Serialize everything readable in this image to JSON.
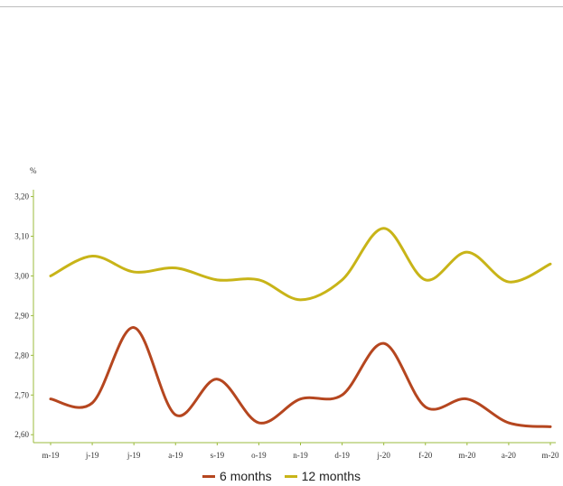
{
  "chart_data": {
    "type": "line",
    "unit_label": "%",
    "categories": [
      "m-19",
      "j-19",
      "j-19",
      "a-19",
      "s-19",
      "o-19",
      "n-19",
      "d-19",
      "j-20",
      "f-20",
      "m-20",
      "a-20",
      "m-20"
    ],
    "ylim": [
      2.58,
      3.24
    ],
    "y_ticks": [
      2.6,
      2.7,
      2.8,
      2.9,
      3.0,
      3.1,
      3.2
    ],
    "y_tick_labels": [
      "2,60",
      "2,70",
      "2,80",
      "2,90",
      "3,00",
      "3,10",
      "3,20"
    ],
    "grid": false,
    "legend_position": "bottom-center",
    "series": [
      {
        "name": "6 months",
        "color": "#b5461f",
        "values": [
          2.69,
          2.68,
          2.87,
          2.65,
          2.74,
          2.63,
          2.69,
          2.7,
          2.83,
          2.67,
          2.69,
          2.63,
          2.62
        ]
      },
      {
        "name": "12 months",
        "color": "#c8b418",
        "values": [
          3.0,
          3.05,
          3.01,
          3.02,
          2.99,
          2.99,
          2.94,
          2.99,
          3.12,
          2.99,
          3.06,
          2.985,
          3.03
        ]
      }
    ]
  }
}
